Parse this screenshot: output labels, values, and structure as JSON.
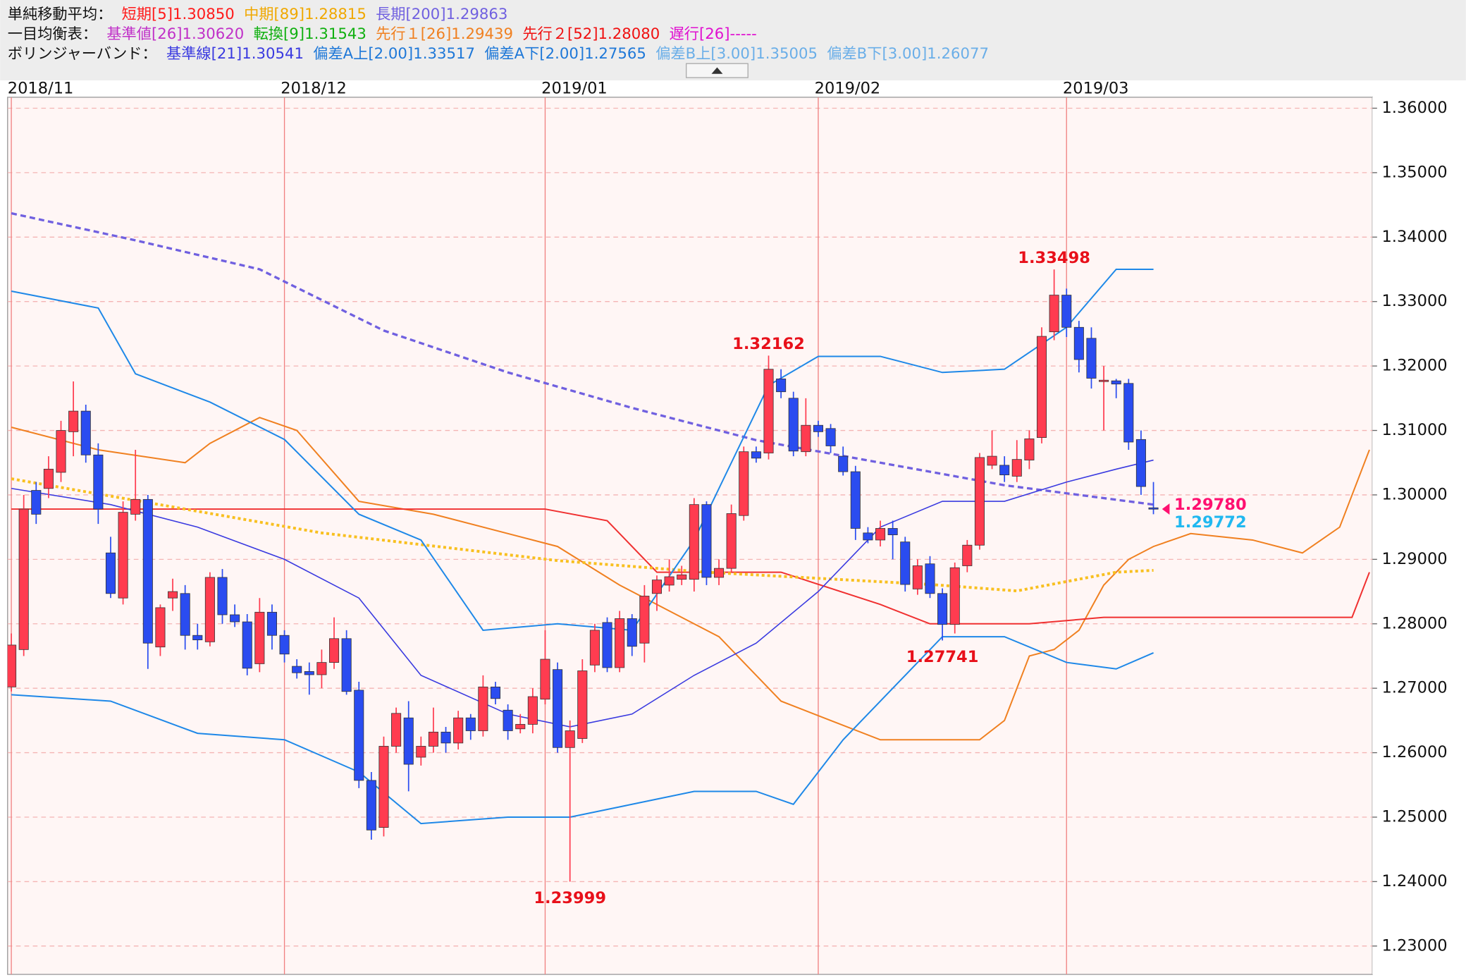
{
  "header": {
    "lines": [
      {
        "heading": "単純移動平均：",
        "items": [
          {
            "text": "短期[5]1.30850",
            "color": "#ff1a1a"
          },
          {
            "text": "中期[89]1.28815",
            "color": "#f0a800"
          },
          {
            "text": "長期[200]1.29863",
            "color": "#7060e0"
          }
        ]
      },
      {
        "heading": "一目均衡表：",
        "items": [
          {
            "text": "基準値[26]1.30620",
            "color": "#c030c8"
          },
          {
            "text": "転換[9]1.31543",
            "color": "#10b010"
          },
          {
            "text": "先行１[26]1.29439",
            "color": "#f08020"
          },
          {
            "text": "先行２[52]1.28080",
            "color": "#f01010"
          },
          {
            "text": "遅行[26]-----",
            "color": "#e010d0"
          }
        ]
      },
      {
        "heading": "ボリンジャーバンド：",
        "items": [
          {
            "text": "基準線[21]1.30541",
            "color": "#3a3ae0"
          },
          {
            "text": "偏差A上[2.00]1.33517",
            "color": "#1e78d8"
          },
          {
            "text": "偏差A下[2.00]1.27565",
            "color": "#1e78d8"
          },
          {
            "text": "偏差B上[3.00]1.35005",
            "color": "#6aaee8"
          },
          {
            "text": "偏差B下[3.00]1.26077",
            "color": "#6aaee8"
          }
        ]
      }
    ]
  },
  "chart_data": {
    "type": "candlestick",
    "categories": [
      "2018/11",
      null,
      null,
      null,
      null,
      null,
      null,
      null,
      null,
      null,
      null,
      null,
      null,
      null,
      null,
      null,
      null,
      null,
      null,
      null,
      null,
      null,
      "2018/12",
      null,
      null,
      null,
      null,
      null,
      null,
      null,
      null,
      null,
      null,
      null,
      null,
      null,
      null,
      null,
      null,
      null,
      null,
      null,
      null,
      "2019/01",
      null,
      null,
      null,
      null,
      null,
      null,
      null,
      null,
      null,
      null,
      null,
      null,
      null,
      null,
      null,
      null,
      null,
      null,
      null,
      null,
      null,
      "2019/02",
      null,
      null,
      null,
      null,
      null,
      null,
      null,
      null,
      null,
      null,
      null,
      null,
      null,
      null,
      null,
      null,
      null,
      null,
      null,
      "2019/03",
      null,
      null,
      null,
      null,
      null,
      null,
      null
    ],
    "open": [
      1.2702,
      1.276,
      1.3007,
      1.301,
      1.3035,
      1.3098,
      1.313,
      1.3062,
      1.291,
      1.284,
      1.297,
      1.2993,
      1.2764,
      1.284,
      1.2847,
      1.2782,
      1.2772,
      1.2872,
      1.2814,
      1.2803,
      1.2738,
      1.2818,
      1.2782,
      1.2734,
      1.2726,
      1.2721,
      1.274,
      1.2777,
      1.2697,
      1.2557,
      1.2484,
      1.261,
      1.2654,
      1.2593,
      1.261,
      1.2632,
      1.2615,
      1.2654,
      1.2634,
      1.2702,
      1.2666,
      1.2637,
      1.2644,
      1.2683,
      1.2729,
      1.2608,
      1.2622,
      1.2736,
      1.2802,
      1.2732,
      1.2808,
      1.277,
      1.2847,
      1.286,
      1.2869,
      1.2869,
      1.2985,
      1.2872,
      1.2886,
      1.2968,
      1.3067,
      1.3065,
      1.318,
      1.315,
      1.3067,
      1.3108,
      1.3103,
      1.306,
      1.3036,
      1.2941,
      1.293,
      1.2948,
      1.2927,
      1.2854,
      1.2893,
      1.2847,
      1.2799,
      1.289,
      1.2922,
      1.3046,
      1.3046,
      1.3029,
      1.3054,
      1.3089,
      1.3253,
      1.331,
      1.326,
      1.3243,
      1.3176,
      1.3177,
      1.3173,
      1.3086,
      1.298
    ],
    "high": [
      1.2785,
      1.3,
      1.302,
      1.306,
      1.3115,
      1.3176,
      1.314,
      1.308,
      1.2935,
      1.299,
      1.307,
      1.3,
      1.283,
      1.287,
      1.286,
      1.28,
      1.288,
      1.2885,
      1.283,
      1.2815,
      1.284,
      1.283,
      1.279,
      1.2745,
      1.274,
      1.276,
      1.281,
      1.279,
      1.271,
      1.257,
      1.2625,
      1.267,
      1.268,
      1.2625,
      1.267,
      1.264,
      1.2665,
      1.266,
      1.272,
      1.271,
      1.2675,
      1.266,
      1.27,
      1.279,
      1.274,
      1.265,
      1.2745,
      1.28,
      1.281,
      1.282,
      1.2815,
      1.286,
      1.2875,
      1.29,
      1.289,
      1.2995,
      1.299,
      1.29,
      1.2985,
      1.3075,
      1.3075,
      1.32162,
      1.3195,
      1.316,
      1.315,
      1.3115,
      1.311,
      1.3075,
      1.3045,
      1.295,
      1.296,
      1.296,
      1.2935,
      1.29,
      1.2905,
      1.2855,
      1.2895,
      1.293,
      1.3065,
      1.31,
      1.306,
      1.3085,
      1.31,
      1.326,
      1.33498,
      1.332,
      1.327,
      1.326,
      1.32,
      1.318,
      1.318,
      1.31,
      1.302
    ],
    "low": [
      1.2695,
      1.275,
      1.2955,
      1.2995,
      1.302,
      1.306,
      1.305,
      1.2955,
      1.284,
      1.283,
      1.296,
      1.273,
      1.275,
      1.282,
      1.276,
      1.276,
      1.2765,
      1.28,
      1.2795,
      1.272,
      1.2725,
      1.276,
      1.274,
      1.2715,
      1.269,
      1.27,
      1.273,
      1.269,
      1.2545,
      1.2465,
      1.247,
      1.26,
      1.254,
      1.258,
      1.26,
      1.26,
      1.2605,
      1.262,
      1.2625,
      1.2675,
      1.262,
      1.263,
      1.263,
      1.2675,
      1.26,
      1.23999,
      1.2615,
      1.2725,
      1.2725,
      1.2725,
      1.275,
      1.274,
      1.282,
      1.285,
      1.286,
      1.285,
      1.286,
      1.286,
      1.288,
      1.296,
      1.305,
      1.3055,
      1.315,
      1.306,
      1.306,
      1.309,
      1.3065,
      1.303,
      1.293,
      1.2925,
      1.292,
      1.29,
      1.285,
      1.2845,
      1.284,
      1.27741,
      1.2785,
      1.288,
      1.2915,
      1.304,
      1.302,
      1.302,
      1.304,
      1.308,
      1.324,
      1.3245,
      1.319,
      1.3165,
      1.31,
      1.315,
      1.307,
      1.3,
      1.297
    ],
    "close": [
      1.2767,
      1.2978,
      1.297,
      1.304,
      1.31,
      1.313,
      1.3062,
      1.2978,
      1.2847,
      1.2973,
      1.2993,
      1.277,
      1.2825,
      1.285,
      1.2782,
      1.2775,
      1.2872,
      1.2814,
      1.2803,
      1.2731,
      1.2818,
      1.2782,
      1.2753,
      1.2724,
      1.2721,
      1.274,
      1.2777,
      1.2695,
      1.2557,
      1.248,
      1.261,
      1.2661,
      1.2582,
      1.261,
      1.2632,
      1.2615,
      1.2654,
      1.2634,
      1.2702,
      1.2684,
      1.2634,
      1.2644,
      1.2687,
      1.2745,
      1.2608,
      1.2634,
      1.2727,
      1.279,
      1.2732,
      1.2808,
      1.2765,
      1.2843,
      1.2868,
      1.2873,
      1.2876,
      1.2985,
      1.2872,
      1.2886,
      1.2971,
      1.3067,
      1.3057,
      1.3195,
      1.316,
      1.3068,
      1.3108,
      1.3098,
      1.3076,
      1.3036,
      1.2948,
      1.293,
      1.2948,
      1.2938,
      1.2861,
      1.289,
      1.2847,
      1.2799,
      1.2887,
      1.2922,
      1.3058,
      1.306,
      1.3031,
      1.3055,
      1.3087,
      1.3246,
      1.331,
      1.326,
      1.321,
      1.3181,
      1.3178,
      1.3172,
      1.3082,
      1.3013,
      1.2978
    ],
    "up_color": "#ff3c50",
    "down_color": "#2a4cf0",
    "wick_color": "#333333",
    "annotation_color": "#e8101a",
    "month_line_color": "#f08080",
    "ylim": [
      1.2256,
      1.3617
    ],
    "yticks": [
      {
        "value": 1.23,
        "label": "1.23000"
      },
      {
        "value": 1.24,
        "label": "1.24000"
      },
      {
        "value": 1.25,
        "label": "1.25000"
      },
      {
        "value": 1.26,
        "label": "1.26000"
      },
      {
        "value": 1.27,
        "label": "1.27000"
      },
      {
        "value": 1.28,
        "label": "1.28000"
      },
      {
        "value": 1.29,
        "label": "1.29000"
      },
      {
        "value": 1.3,
        "label": "1.30000"
      },
      {
        "value": 1.31,
        "label": "1.31000"
      },
      {
        "value": 1.32,
        "label": "1.32000"
      },
      {
        "value": 1.33,
        "label": "1.33000"
      },
      {
        "value": 1.34,
        "label": "1.34000"
      },
      {
        "value": 1.35,
        "label": "1.35000"
      },
      {
        "value": 1.36,
        "label": "1.36000"
      }
    ],
    "grid": true,
    "overlays": [
      {
        "color": "#f08020",
        "dash": "",
        "width": 1.5,
        "x": [
          0,
          7,
          14,
          16,
          20,
          23,
          28,
          34,
          40,
          44,
          49,
          53,
          57,
          61,
          62,
          66,
          70,
          74,
          78,
          80,
          82,
          84,
          86,
          88,
          90,
          92,
          95,
          100,
          104,
          107,
          109.4
        ],
        "values": [
          1.3105,
          1.307,
          1.305,
          1.308,
          1.312,
          1.31,
          1.299,
          1.297,
          1.294,
          1.292,
          1.286,
          1.282,
          1.278,
          1.27,
          1.268,
          1.265,
          1.262,
          1.262,
          1.262,
          1.265,
          1.275,
          1.276,
          1.279,
          1.286,
          1.29,
          1.292,
          1.294,
          1.293,
          1.291,
          1.295,
          1.307
        ]
      },
      {
        "color": "#f03030",
        "dash": "",
        "width": 1.5,
        "x": [
          0,
          43,
          48,
          52,
          62,
          70,
          74,
          82,
          88,
          108,
          109.4
        ],
        "values": [
          1.2978,
          1.2978,
          1.296,
          1.288,
          1.288,
          1.283,
          1.28,
          1.28,
          1.281,
          1.281,
          1.288
        ]
      },
      {
        "color": "#7060e0",
        "dash": "6 4",
        "width": 2.5,
        "x": [
          0,
          10,
          20,
          30,
          40,
          50,
          60,
          70,
          80,
          92
        ],
        "values": [
          1.3437,
          1.3395,
          1.335,
          1.3255,
          1.319,
          1.3135,
          1.3085,
          1.305,
          1.3015,
          1.2985
        ]
      },
      {
        "color": "#f8c020",
        "dash": "3 3",
        "width": 3,
        "x": [
          0,
          14,
          25,
          44,
          56,
          74,
          81,
          89,
          92
        ],
        "values": [
          1.3025,
          1.2978,
          1.2941,
          1.2898,
          1.288,
          1.2861,
          1.2851,
          1.288,
          1.2883
        ]
      },
      {
        "color": "#1e88e8",
        "dash": "",
        "width": 1.5,
        "x": [
          0,
          7,
          10,
          16,
          22,
          28,
          33,
          38,
          44,
          50,
          55,
          61,
          65,
          70,
          75,
          80,
          85,
          89,
          92
        ],
        "values": [
          1.3316,
          1.329,
          1.3188,
          1.3144,
          1.3086,
          1.297,
          1.293,
          1.279,
          1.28,
          1.279,
          1.293,
          1.317,
          1.3215,
          1.3215,
          1.319,
          1.3195,
          1.326,
          1.335,
          1.335
        ]
      },
      {
        "color": "#1e88e8",
        "dash": "",
        "width": 1.5,
        "x": [
          0,
          8,
          15,
          22,
          28,
          33,
          40,
          45,
          50,
          55,
          60,
          63,
          67,
          72,
          75,
          80,
          85,
          89,
          92
        ],
        "values": [
          1.269,
          1.268,
          1.263,
          1.262,
          1.257,
          1.249,
          1.25,
          1.25,
          1.252,
          1.254,
          1.254,
          1.252,
          1.262,
          1.272,
          1.278,
          1.278,
          1.274,
          1.273,
          1.2755
        ]
      },
      {
        "color": "#3a3ae0",
        "dash": "",
        "width": 1.2,
        "x": [
          0,
          8,
          15,
          22,
          28,
          33,
          40,
          45,
          50,
          55,
          60,
          65,
          70,
          75,
          80,
          85,
          89,
          92
        ],
        "values": [
          1.301,
          1.2985,
          1.295,
          1.29,
          1.284,
          1.272,
          1.266,
          1.264,
          1.266,
          1.272,
          1.277,
          1.285,
          1.295,
          1.299,
          1.299,
          1.302,
          1.304,
          1.3054
        ]
      }
    ],
    "price_markers": [
      {
        "value": 1.2978,
        "label": "1.29780",
        "color": "#ff1070"
      },
      {
        "value": 1.29772,
        "label": "1.29772",
        "color": "#20b8f0"
      }
    ]
  }
}
